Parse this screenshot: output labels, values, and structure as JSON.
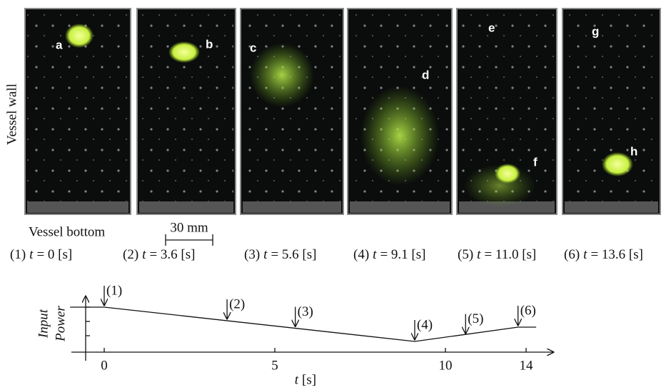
{
  "figure": {
    "side_label": "Vessel wall",
    "bottom_label": "Vessel bottom",
    "scale_label": "30 mm",
    "panel_letters": [
      "a",
      "b",
      "c",
      "d",
      "e",
      "f",
      "g",
      "h"
    ],
    "captions": [
      {
        "number": "(1)",
        "var": "t",
        "rest": "= 0 [s]"
      },
      {
        "number": "(2)",
        "var": "t",
        "rest": "= 3.6 [s]"
      },
      {
        "number": "(3)",
        "var": "t",
        "rest": "= 5.6 [s]"
      },
      {
        "number": "(4)",
        "var": "t",
        "rest": "= 9.1 [s]"
      },
      {
        "number": "(5)",
        "var": "t",
        "rest": "= 11.0 [s]"
      },
      {
        "number": "(6)",
        "var": "t",
        "rest": "= 13.6 [s]"
      }
    ]
  },
  "chart_data": {
    "type": "line",
    "y_label_1": "Input",
    "y_label_2": "Power",
    "x_label_var": "t",
    "x_label_unit": "[s]",
    "x": [
      -1,
      0,
      9.1,
      13.6,
      14.5
    ],
    "values": [
      3,
      3,
      0.6,
      1.6,
      1.6
    ],
    "xticks": [
      0,
      5,
      10,
      14
    ],
    "ylim": [
      0,
      4
    ],
    "yticks": [
      1,
      2,
      3
    ],
    "markers": [
      {
        "label": "(1)",
        "x": 0
      },
      {
        "label": "(2)",
        "x": 3.6
      },
      {
        "label": "(3)",
        "x": 5.6
      },
      {
        "label": "(4)",
        "x": 9.1
      },
      {
        "label": "(5)",
        "x": 11
      },
      {
        "label": "(6)",
        "x": 13.6
      }
    ]
  }
}
